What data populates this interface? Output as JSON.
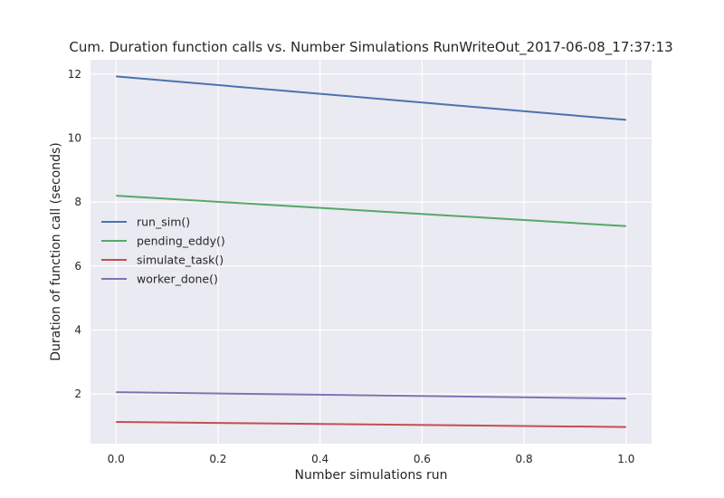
{
  "chart_data": {
    "type": "line",
    "title": "Cum. Duration function calls vs. Number Simulations RunWriteOut_2017-06-08_17:37:13",
    "xlabel": "Number simulations run",
    "ylabel": "Duration of function call (seconds)",
    "xlim": [
      -0.05,
      1.05
    ],
    "ylim": [
      0.45,
      12.45
    ],
    "xticks": [
      0.0,
      0.2,
      0.4,
      0.6,
      0.8,
      1.0
    ],
    "xtick_labels": [
      "0.0",
      "0.2",
      "0.4",
      "0.6",
      "0.8",
      "1.0"
    ],
    "yticks": [
      2,
      4,
      6,
      8,
      10,
      12
    ],
    "ytick_labels": [
      "2",
      "4",
      "6",
      "8",
      "10",
      "12"
    ],
    "grid": true,
    "legend_position": "center-left",
    "x": [
      0.0,
      1.0
    ],
    "series": [
      {
        "name": "run_sim()",
        "values": [
          11.93,
          10.57
        ],
        "color": "#4c72b0"
      },
      {
        "name": "pending_eddy()",
        "values": [
          8.2,
          7.25
        ],
        "color": "#55a868"
      },
      {
        "name": "simulate_task()",
        "values": [
          1.13,
          0.97
        ],
        "color": "#c44e52"
      },
      {
        "name": "worker_done()",
        "values": [
          2.06,
          1.86
        ],
        "color": "#8172b2"
      }
    ]
  }
}
